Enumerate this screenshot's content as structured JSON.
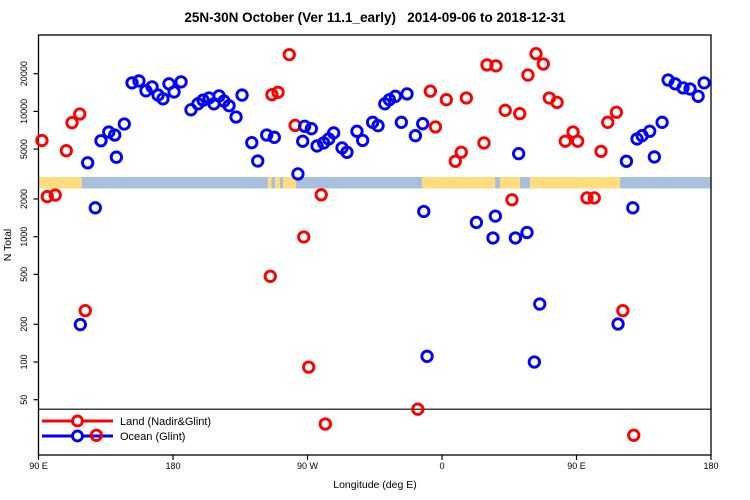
{
  "title": "25N-30N October (Ver 11.1_early)   2014-09-06 to 2018-12-31",
  "axes": {
    "x_title": "Longitude (deg E)",
    "y_title": "N Total"
  },
  "legend": {
    "items": [
      {
        "label": "Land (Nadir&Glint)",
        "color": "#fe0000"
      },
      {
        "label": "Ocean (Glint)",
        "color": "#0000fe"
      }
    ]
  },
  "colors": {
    "land_point": "#fe0000",
    "ocean_point": "#0000fe",
    "band_land": "#ffdc7e",
    "band_ocean": "#a9c0dd",
    "axis": "#000000"
  },
  "chart_data": {
    "type": "scatter",
    "title": "25N-30N October (Ver 11.1_early)   2014-09-06 to 2018-12-31",
    "xlabel": "Longitude (deg E)",
    "ylabel": "N Total",
    "x_axis": {
      "range_plot_lon": [
        90,
        540
      ],
      "ticks_lon": [
        90,
        180,
        270,
        360,
        450,
        540
      ],
      "tick_labels": [
        "90 E",
        "180",
        "90 W",
        "0",
        "90 E",
        "180"
      ]
    },
    "y_axis": {
      "scale": "log",
      "range": [
        7,
        45000
      ],
      "ticks": [
        50,
        100,
        200,
        500,
        1000,
        2000,
        5000,
        10000,
        20000
      ],
      "tick_labels": [
        "50",
        "100",
        "200",
        "500",
        "1000",
        "2000",
        "5000",
        "10000",
        "20000"
      ]
    },
    "hline_n": 42,
    "series": [
      {
        "name": "Land (Nadir&Glint)",
        "color": "#fe0000",
        "points": [
          [
            92.3,
            5860
          ],
          [
            108.6,
            4860
          ],
          [
            112.4,
            8130
          ],
          [
            117.6,
            9530
          ],
          [
            95.9,
            2090
          ],
          [
            101.2,
            2150
          ],
          [
            121.3,
            257
          ],
          [
            128.7,
            26
          ],
          [
            257.8,
            28400
          ],
          [
            246.2,
            13600
          ],
          [
            250.3,
            14200
          ],
          [
            261.7,
            7730
          ],
          [
            279.2,
            2160
          ],
          [
            267.5,
            995
          ],
          [
            245.1,
            483
          ],
          [
            270.8,
            91
          ],
          [
            281.9,
            32
          ],
          [
            343.8,
            42
          ],
          [
            352.2,
            14500
          ],
          [
            355.6,
            7520
          ],
          [
            362.9,
            12400
          ],
          [
            376.3,
            12800
          ],
          [
            368.9,
            4000
          ],
          [
            372.9,
            4720
          ],
          [
            388.1,
            5600
          ],
          [
            390.1,
            23500
          ],
          [
            396.1,
            23100
          ],
          [
            406.8,
            1970
          ],
          [
            402.3,
            10200
          ],
          [
            412,
            9590
          ],
          [
            417.5,
            19500
          ],
          [
            422.9,
            28900
          ],
          [
            427.8,
            23900
          ],
          [
            431.8,
            12800
          ],
          [
            437,
            11800
          ],
          [
            442.5,
            5780
          ],
          [
            447.7,
            6850
          ],
          [
            450.8,
            5780
          ],
          [
            457,
            2040
          ],
          [
            461.9,
            2040
          ],
          [
            466.4,
            4800
          ],
          [
            470.9,
            8180
          ],
          [
            476.7,
            9840
          ],
          [
            481,
            257
          ],
          [
            488.3,
            26
          ]
        ]
      },
      {
        "name": "Ocean (Glint)",
        "color": "#0000fe",
        "points": [
          [
            122.9,
            3890
          ],
          [
            131.8,
            5830
          ],
          [
            137,
            6840
          ],
          [
            141,
            6480
          ],
          [
            147.4,
            7930
          ],
          [
            142.1,
            4310
          ],
          [
            118,
            199
          ],
          [
            128,
            1700
          ],
          [
            152.6,
            16900
          ],
          [
            157.2,
            17500
          ],
          [
            161.9,
            14600
          ],
          [
            166,
            15700
          ],
          [
            170,
            13500
          ],
          [
            173.3,
            12600
          ],
          [
            177.3,
            16600
          ],
          [
            180.7,
            14300
          ],
          [
            185.4,
            17200
          ],
          [
            192,
            10300
          ],
          [
            196.7,
            11500
          ],
          [
            200.1,
            12300
          ],
          [
            204.1,
            12800
          ],
          [
            207.4,
            11500
          ],
          [
            210.8,
            13300
          ],
          [
            214.1,
            12100
          ],
          [
            217.5,
            11100
          ],
          [
            222.2,
            9020
          ],
          [
            226.2,
            13500
          ],
          [
            232.7,
            5630
          ],
          [
            236.7,
            4020
          ],
          [
            242.7,
            6480
          ],
          [
            247.8,
            6210
          ],
          [
            263.6,
            3170
          ],
          [
            266.8,
            5780
          ],
          [
            268.1,
            7610
          ],
          [
            272.6,
            7280
          ],
          [
            276.4,
            5300
          ],
          [
            280.8,
            5600
          ],
          [
            284.2,
            6030
          ],
          [
            287.5,
            6730
          ],
          [
            293.1,
            5110
          ],
          [
            296.4,
            4720
          ],
          [
            303.1,
            6940
          ],
          [
            306.9,
            5870
          ],
          [
            313.6,
            8180
          ],
          [
            317.2,
            7690
          ],
          [
            321.7,
            11500
          ],
          [
            324.8,
            12400
          ],
          [
            328.8,
            13200
          ],
          [
            336.6,
            13800
          ],
          [
            332.8,
            8180
          ],
          [
            342.2,
            6400
          ],
          [
            347.1,
            7980
          ],
          [
            347.8,
            1590
          ],
          [
            350,
            111
          ],
          [
            383,
            1300
          ],
          [
            394.1,
            977
          ],
          [
            395.7,
            1460
          ],
          [
            409.1,
            977
          ],
          [
            411.3,
            4600
          ],
          [
            416.9,
            1080
          ],
          [
            421.8,
            100
          ],
          [
            425.4,
            290
          ],
          [
            477.8,
            201
          ],
          [
            483.4,
            4000
          ],
          [
            487.7,
            1700
          ],
          [
            490.5,
            6030
          ],
          [
            493.9,
            6400
          ],
          [
            499,
            6940
          ],
          [
            502.1,
            4330
          ],
          [
            507.3,
            8180
          ],
          [
            511.3,
            17800
          ],
          [
            516,
            16600
          ],
          [
            521.3,
            15400
          ],
          [
            526,
            15100
          ],
          [
            531.4,
            13200
          ],
          [
            535.4,
            16900
          ]
        ]
      }
    ],
    "map_band": {
      "description": "land/ocean strip for 25N-30N latitude belt",
      "land_color": "#ffdc7e",
      "ocean_color": "#a9c0dd",
      "segments": [
        [
          90,
          119,
          "land"
        ],
        [
          119,
          243.6,
          "ocean"
        ],
        [
          243.6,
          245.9,
          "land"
        ],
        [
          245.9,
          248.3,
          "ocean"
        ],
        [
          248.3,
          251.6,
          "land"
        ],
        [
          251.6,
          253.6,
          "ocean"
        ],
        [
          253.6,
          262.3,
          "land"
        ],
        [
          262.3,
          346.6,
          "ocean"
        ],
        [
          346.6,
          395.5,
          "land"
        ],
        [
          395.5,
          398.8,
          "ocean"
        ],
        [
          398.8,
          412.2,
          "land"
        ],
        [
          412.2,
          418.9,
          "ocean"
        ],
        [
          418.9,
          479.2,
          "land"
        ],
        [
          479.2,
          540,
          "ocean"
        ]
      ]
    }
  }
}
